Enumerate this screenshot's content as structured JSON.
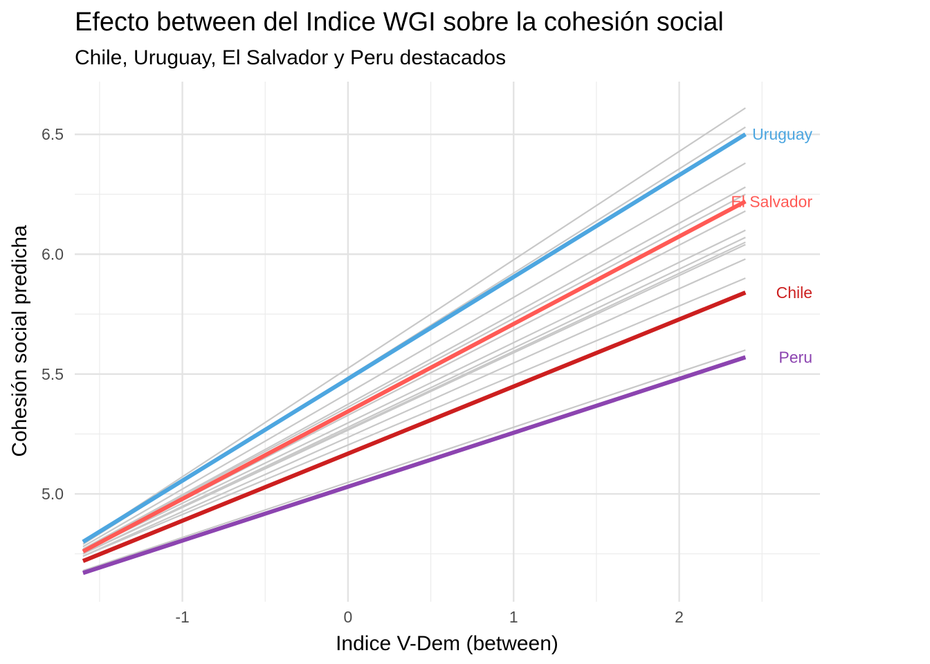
{
  "chart_data": {
    "type": "line",
    "title": "Efecto between del Indice WGI sobre la cohesión social",
    "subtitle": "Chile, Uruguay, El Salvador y Peru destacados",
    "xlabel": "Indice V-Dem (between)",
    "ylabel": "Cohesión social predicha",
    "xlim": [
      -1.65,
      2.85
    ],
    "ylim": [
      4.55,
      6.72
    ],
    "x_ticks": [
      -1,
      0,
      1,
      2
    ],
    "x_tick_labels": [
      "-1",
      "0",
      "1",
      "2"
    ],
    "y_ticks": [
      5.0,
      5.5,
      6.0,
      6.5
    ],
    "y_tick_labels": [
      "5.0",
      "5.5",
      "6.0",
      "6.5"
    ],
    "grid": true,
    "x_range": [
      -1.6,
      2.4
    ],
    "background_series": [
      {
        "y_start": 4.8,
        "y_end": 6.61
      },
      {
        "y_start": 4.79,
        "y_end": 6.53
      },
      {
        "y_start": 4.78,
        "y_end": 6.38
      },
      {
        "y_start": 4.77,
        "y_end": 6.28
      },
      {
        "y_start": 4.77,
        "y_end": 6.25
      },
      {
        "y_start": 4.76,
        "y_end": 6.22
      },
      {
        "y_start": 4.76,
        "y_end": 6.18
      },
      {
        "y_start": 4.76,
        "y_end": 6.1
      },
      {
        "y_start": 4.75,
        "y_end": 6.07
      },
      {
        "y_start": 4.75,
        "y_end": 6.05
      },
      {
        "y_start": 4.75,
        "y_end": 6.04
      },
      {
        "y_start": 4.74,
        "y_end": 5.98
      },
      {
        "y_start": 4.74,
        "y_end": 5.9
      },
      {
        "y_start": 4.68,
        "y_end": 5.6
      }
    ],
    "series": [
      {
        "name": "Uruguay",
        "y_start": 4.8,
        "y_end": 6.5,
        "color": "#4da6e0"
      },
      {
        "name": "El Salvador",
        "y_start": 4.76,
        "y_end": 6.22,
        "color": "#ff5a55"
      },
      {
        "name": "Chile",
        "y_start": 4.72,
        "y_end": 5.84,
        "color": "#cc1f1f"
      },
      {
        "name": "Peru",
        "y_start": 4.67,
        "y_end": 5.57,
        "color": "#8c44b0"
      }
    ],
    "background_color": "#c8c8c8"
  }
}
